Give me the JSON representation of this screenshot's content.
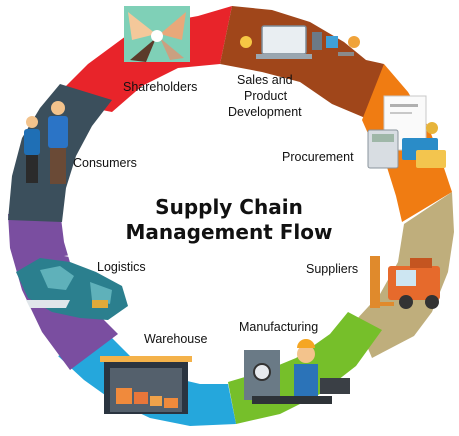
{
  "title": {
    "line1": "Supply Chain",
    "line2": "Management Flow"
  },
  "steps": {
    "shareholders": "Shareholders",
    "sales_line1": "Sales and",
    "sales_line2": "Product",
    "sales_line3": "Development",
    "procurement": "Procurement",
    "suppliers": "Suppliers",
    "manufacturing": "Manufacturing",
    "warehouse": "Warehouse",
    "logistics": "Logistics",
    "consumers": "Consumers"
  },
  "colors": {
    "shareholders": "#e8242a",
    "sales": "#a0461a",
    "procurement": "#f07c12",
    "suppliers": "#bfae7c",
    "manufacturing": "#76bf2a",
    "warehouse": "#25a7dc",
    "logistics": "#7a4ea0",
    "consumers": "#3b4f5c"
  },
  "icons": {
    "shareholders": "hands-together-icon",
    "sales": "laptop-tools-icon",
    "procurement": "calculator-invoice-icon",
    "suppliers": "forklift-icon",
    "manufacturing": "factory-worker-icon",
    "warehouse": "warehouse-boxes-icon",
    "logistics": "world-map-transport-icon",
    "consumers": "couple-icon"
  }
}
